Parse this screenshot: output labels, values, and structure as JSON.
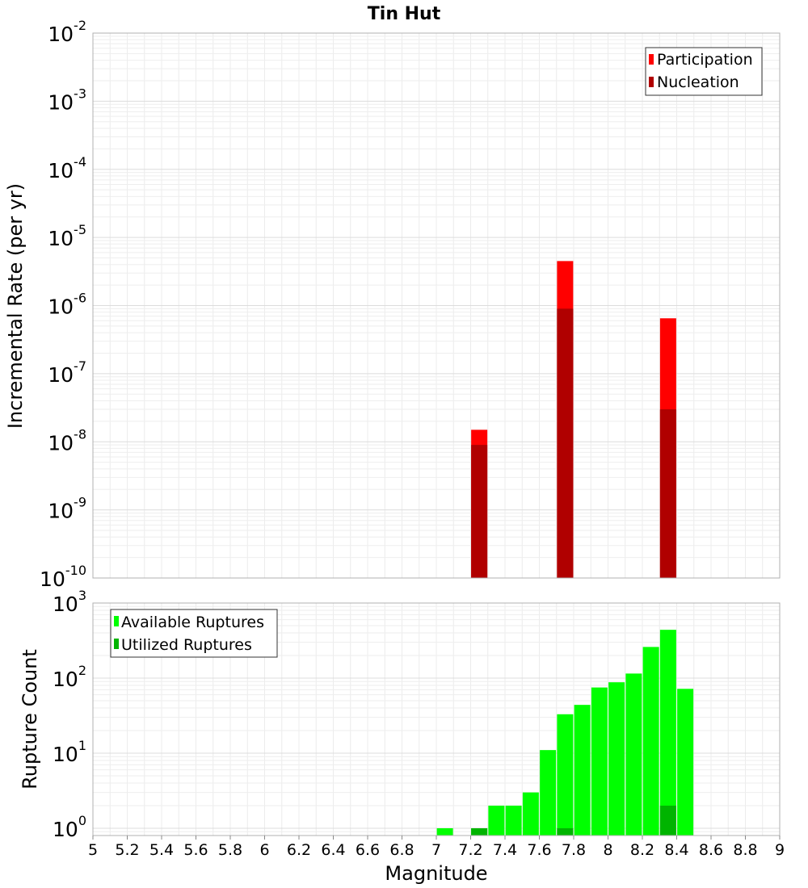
{
  "chart_data": [
    {
      "type": "bar",
      "title": "Tin Hut",
      "xlabel": "",
      "ylabel": "Incremental Rate (per yr)",
      "xlim": [
        5,
        9
      ],
      "ylim": [
        1e-10,
        0.01
      ],
      "y_scale": "log",
      "y_ticks": [
        {
          "base": "10",
          "exp": "-10"
        },
        {
          "base": "10",
          "exp": "-9"
        },
        {
          "base": "10",
          "exp": "-8"
        },
        {
          "base": "10",
          "exp": "-7"
        },
        {
          "base": "10",
          "exp": "-6"
        },
        {
          "base": "10",
          "exp": "-5"
        },
        {
          "base": "10",
          "exp": "-4"
        },
        {
          "base": "10",
          "exp": "-3"
        },
        {
          "base": "10",
          "exp": "-2"
        }
      ],
      "grid": true,
      "legend_position": "top-right",
      "series": [
        {
          "name": "Participation",
          "color": "#ff0000",
          "points": [
            {
              "x": 7.25,
              "y": 1.5e-08
            },
            {
              "x": 7.75,
              "y": 4.5e-06
            },
            {
              "x": 8.35,
              "y": 6.5e-07
            }
          ]
        },
        {
          "name": "Nucleation",
          "color": "#b00000",
          "points": [
            {
              "x": 7.25,
              "y": 9e-09
            },
            {
              "x": 7.75,
              "y": 9e-07
            },
            {
              "x": 8.35,
              "y": 3e-08
            }
          ]
        }
      ]
    },
    {
      "type": "bar",
      "title": "",
      "xlabel": "Magnitude",
      "ylabel": "Rupture Count",
      "xlim": [
        5,
        9
      ],
      "ylim": [
        0.8,
        1000
      ],
      "y_scale": "log",
      "x_tick_labels": [
        "5",
        "5.2",
        "5.4",
        "5.6",
        "5.8",
        "6",
        "6.2",
        "6.4",
        "6.6",
        "6.8",
        "7",
        "7.2",
        "7.4",
        "7.6",
        "7.8",
        "8",
        "8.2",
        "8.4",
        "8.6",
        "8.8",
        "9"
      ],
      "y_ticks": [
        {
          "base": "10",
          "exp": "0"
        },
        {
          "base": "10",
          "exp": "1"
        },
        {
          "base": "10",
          "exp": "2"
        },
        {
          "base": "10",
          "exp": "3"
        }
      ],
      "grid": true,
      "legend_position": "top-left",
      "series": [
        {
          "name": "Available Ruptures",
          "color": "#00ff00",
          "points": [
            {
              "x": 7.05,
              "y": 1
            },
            {
              "x": 7.25,
              "y": 1
            },
            {
              "x": 7.35,
              "y": 2
            },
            {
              "x": 7.45,
              "y": 2
            },
            {
              "x": 7.55,
              "y": 3
            },
            {
              "x": 7.65,
              "y": 11
            },
            {
              "x": 7.75,
              "y": 33
            },
            {
              "x": 7.85,
              "y": 44
            },
            {
              "x": 7.95,
              "y": 75
            },
            {
              "x": 8.05,
              "y": 88
            },
            {
              "x": 8.15,
              "y": 115
            },
            {
              "x": 8.25,
              "y": 260
            },
            {
              "x": 8.35,
              "y": 440
            },
            {
              "x": 8.45,
              "y": 72
            }
          ]
        },
        {
          "name": "Utilized Ruptures",
          "color": "#00b400",
          "points": [
            {
              "x": 7.25,
              "y": 1
            },
            {
              "x": 7.75,
              "y": 1
            },
            {
              "x": 8.35,
              "y": 2
            }
          ]
        }
      ]
    }
  ]
}
